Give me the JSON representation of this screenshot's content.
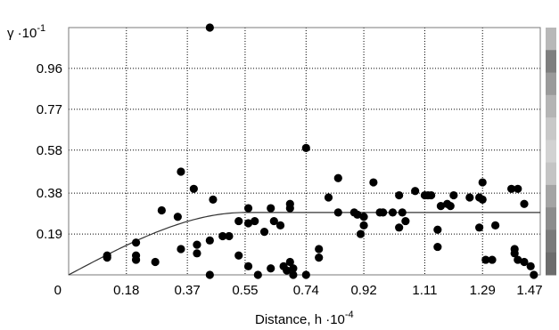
{
  "chart_data": {
    "type": "scatter",
    "title": "",
    "ylabel": "γ ·10",
    "ylabel_exponent": "-1",
    "xlabel": "Distance, h ·10",
    "xlabel_exponent": "-4",
    "x_ticks": [
      "0",
      "0.18",
      "0.37",
      "0.55",
      "0.74",
      "0.92",
      "1.11",
      "1.29",
      "1.47"
    ],
    "y_ticks": [
      "0.19",
      "0.38",
      "0.58",
      "0.77",
      "0.96"
    ],
    "xlim": [
      0,
      1.47
    ],
    "ylim": [
      0,
      1.15
    ],
    "grid": true,
    "series": [
      {
        "kind": "points",
        "color": "#000000",
        "points": [
          [
            0.12,
            0.09
          ],
          [
            0.12,
            0.08
          ],
          [
            0.21,
            0.15
          ],
          [
            0.21,
            0.09
          ],
          [
            0.21,
            0.07
          ],
          [
            0.27,
            0.06
          ],
          [
            0.29,
            0.3
          ],
          [
            0.34,
            0.27
          ],
          [
            0.35,
            0.48
          ],
          [
            0.35,
            0.12
          ],
          [
            0.39,
            0.4
          ],
          [
            0.4,
            0.14
          ],
          [
            0.4,
            0.1
          ],
          [
            0.44,
            1.15
          ],
          [
            0.45,
            0.35
          ],
          [
            0.44,
            0.16
          ],
          [
            0.44,
            0.0
          ],
          [
            0.48,
            0.18
          ],
          [
            0.5,
            0.18
          ],
          [
            0.53,
            0.25
          ],
          [
            0.53,
            0.09
          ],
          [
            0.56,
            0.31
          ],
          [
            0.56,
            0.24
          ],
          [
            0.56,
            0.04
          ],
          [
            0.58,
            0.25
          ],
          [
            0.59,
            0.0
          ],
          [
            0.61,
            0.2
          ],
          [
            0.63,
            0.31
          ],
          [
            0.64,
            0.25
          ],
          [
            0.63,
            0.03
          ],
          [
            0.66,
            0.23
          ],
          [
            0.67,
            0.04
          ],
          [
            0.68,
            0.02
          ],
          [
            0.69,
            0.33
          ],
          [
            0.69,
            0.31
          ],
          [
            0.69,
            0.06
          ],
          [
            0.7,
            0.03
          ],
          [
            0.7,
            0.0
          ],
          [
            0.74,
            0.59
          ],
          [
            0.74,
            0.0
          ],
          [
            0.78,
            0.12
          ],
          [
            0.78,
            0.08
          ],
          [
            0.81,
            0.36
          ],
          [
            0.84,
            0.45
          ],
          [
            0.84,
            0.29
          ],
          [
            0.89,
            0.29
          ],
          [
            0.9,
            0.28
          ],
          [
            0.91,
            0.19
          ],
          [
            0.92,
            0.27
          ],
          [
            0.92,
            0.23
          ],
          [
            0.95,
            0.43
          ],
          [
            0.97,
            0.29
          ],
          [
            0.98,
            0.29
          ],
          [
            1.01,
            0.29
          ],
          [
            1.03,
            0.37
          ],
          [
            1.03,
            0.22
          ],
          [
            1.04,
            0.29
          ],
          [
            1.05,
            0.25
          ],
          [
            1.08,
            0.39
          ],
          [
            1.11,
            0.37
          ],
          [
            1.12,
            0.37
          ],
          [
            1.13,
            0.37
          ],
          [
            1.15,
            0.21
          ],
          [
            1.15,
            0.13
          ],
          [
            1.16,
            0.32
          ],
          [
            1.18,
            0.33
          ],
          [
            1.19,
            0.32
          ],
          [
            1.2,
            0.37
          ],
          [
            1.25,
            0.36
          ],
          [
            1.28,
            0.36
          ],
          [
            1.28,
            0.22
          ],
          [
            1.29,
            0.43
          ],
          [
            1.29,
            0.35
          ],
          [
            1.3,
            0.07
          ],
          [
            1.32,
            0.07
          ],
          [
            1.33,
            0.23
          ],
          [
            1.38,
            0.4
          ],
          [
            1.39,
            0.12
          ],
          [
            1.39,
            0.1
          ],
          [
            1.4,
            0.4
          ],
          [
            1.4,
            0.07
          ],
          [
            1.42,
            0.33
          ],
          [
            1.42,
            0.06
          ],
          [
            1.44,
            0.04
          ],
          [
            1.45,
            0.0
          ]
        ]
      },
      {
        "kind": "model",
        "model": "spherical",
        "nugget": 0.0,
        "sill": 0.29,
        "range": 0.55,
        "color": "#333333"
      }
    ],
    "colorbar": {
      "colors": [
        "#b8b8b8",
        "#7e7e7e",
        "#9a9a9a",
        "#b4b4b4",
        "#c8c8c8",
        "#d2d2d2",
        "#c4c4c4",
        "#a4a4a4",
        "#8c8c8c",
        "#7a7a7a",
        "#6c6c6c"
      ]
    }
  }
}
